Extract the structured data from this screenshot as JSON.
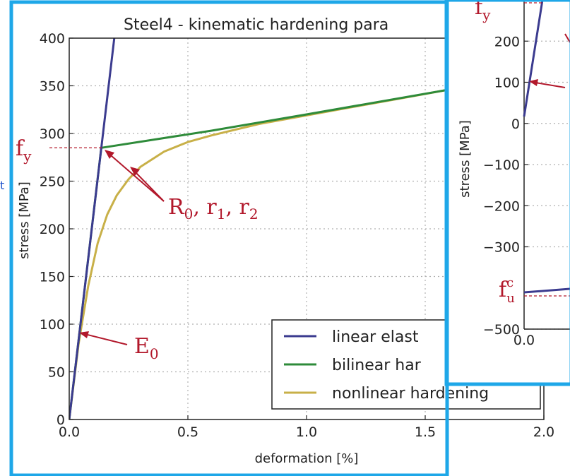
{
  "chart_data": [
    {
      "type": "line",
      "title": "Steel4 - kinematic hardening para",
      "xlabel": "deformation [%]",
      "ylabel": "stress [MPa]",
      "xlim": [
        0,
        2.0
      ],
      "ylim": [
        0,
        400
      ],
      "x_ticks": [
        "0.0",
        "0.5",
        "1.0",
        "1.5",
        "2.0"
      ],
      "y_ticks": [
        "0",
        "50",
        "100",
        "150",
        "200",
        "250",
        "300",
        "350",
        "400"
      ],
      "grid": true,
      "legend_placement": "lower-right",
      "series": [
        {
          "name": "linear elast",
          "color": "#3b3b8f",
          "x": [
            0,
            0.19
          ],
          "y": [
            0,
            400
          ]
        },
        {
          "name": "bilinear har",
          "color": "#2e8b3a",
          "x": [
            0,
            0.135,
            0.6,
            1.0,
            1.6
          ],
          "y": [
            0,
            285,
            303,
            320,
            346
          ]
        },
        {
          "name": "nonlinear hardening",
          "color": "#c8b048",
          "x": [
            0,
            0.04,
            0.08,
            0.12,
            0.16,
            0.2,
            0.25,
            0.3,
            0.4,
            0.5,
            0.6,
            0.8,
            1.0,
            1.2,
            1.4,
            1.6
          ],
          "y": [
            0,
            80,
            140,
            185,
            215,
            235,
            252,
            265,
            281,
            291,
            298,
            310,
            319,
            328,
            337,
            346
          ]
        }
      ],
      "annotations": {
        "fy": "f",
        "fy_sub": "y",
        "r_label": "R",
        "r_sub0": "0",
        "r_sep1": ", r",
        "r_sub1": "1",
        "r_sep2": ", r",
        "r_sub2": "2",
        "e_label": "E",
        "e_sub": "0",
        "fy_level": 285
      }
    },
    {
      "type": "line",
      "ylabel": "stress [MPa]",
      "xlim": [
        0,
        2.0
      ],
      "ylim": [
        -500,
        300
      ],
      "x_ticks": [
        "0.0"
      ],
      "y_ticks": [
        "200",
        "100",
        "0",
        "−100",
        "−200",
        "−300",
        "−500"
      ],
      "grid": true,
      "annotations": {
        "fy": "f",
        "fy_sub": "y",
        "fuc": "f",
        "fuc_sub": "u",
        "fuc_sup": "c"
      }
    }
  ],
  "left_edge_text": "t",
  "colors": {
    "frame": "#1ea7e8",
    "annotation": "#b2182b",
    "grid": "#b0b0b0"
  }
}
